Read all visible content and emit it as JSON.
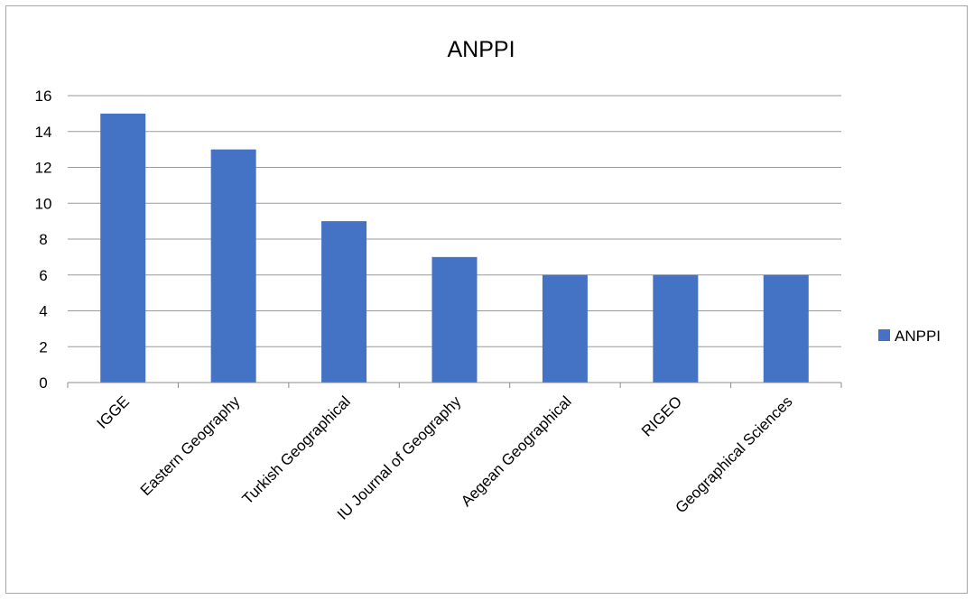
{
  "chart_data": {
    "type": "bar",
    "title": "ANPPI",
    "categories": [
      "IGGE",
      "Eastern Geography",
      "Turkish Geographical",
      "IU Journal of Geography",
      "Aegean Geographical",
      "RIGEO",
      "Geographical Sciences"
    ],
    "series": [
      {
        "name": "ANPPI",
        "values": [
          15,
          13,
          9,
          7,
          6,
          6,
          6
        ],
        "color": "#4472c4"
      }
    ],
    "yticks": [
      "0",
      "2",
      "4",
      "6",
      "8",
      "10",
      "12",
      "14",
      "16"
    ],
    "ylim": [
      0,
      16
    ],
    "grid": true,
    "legend_position": "right"
  }
}
